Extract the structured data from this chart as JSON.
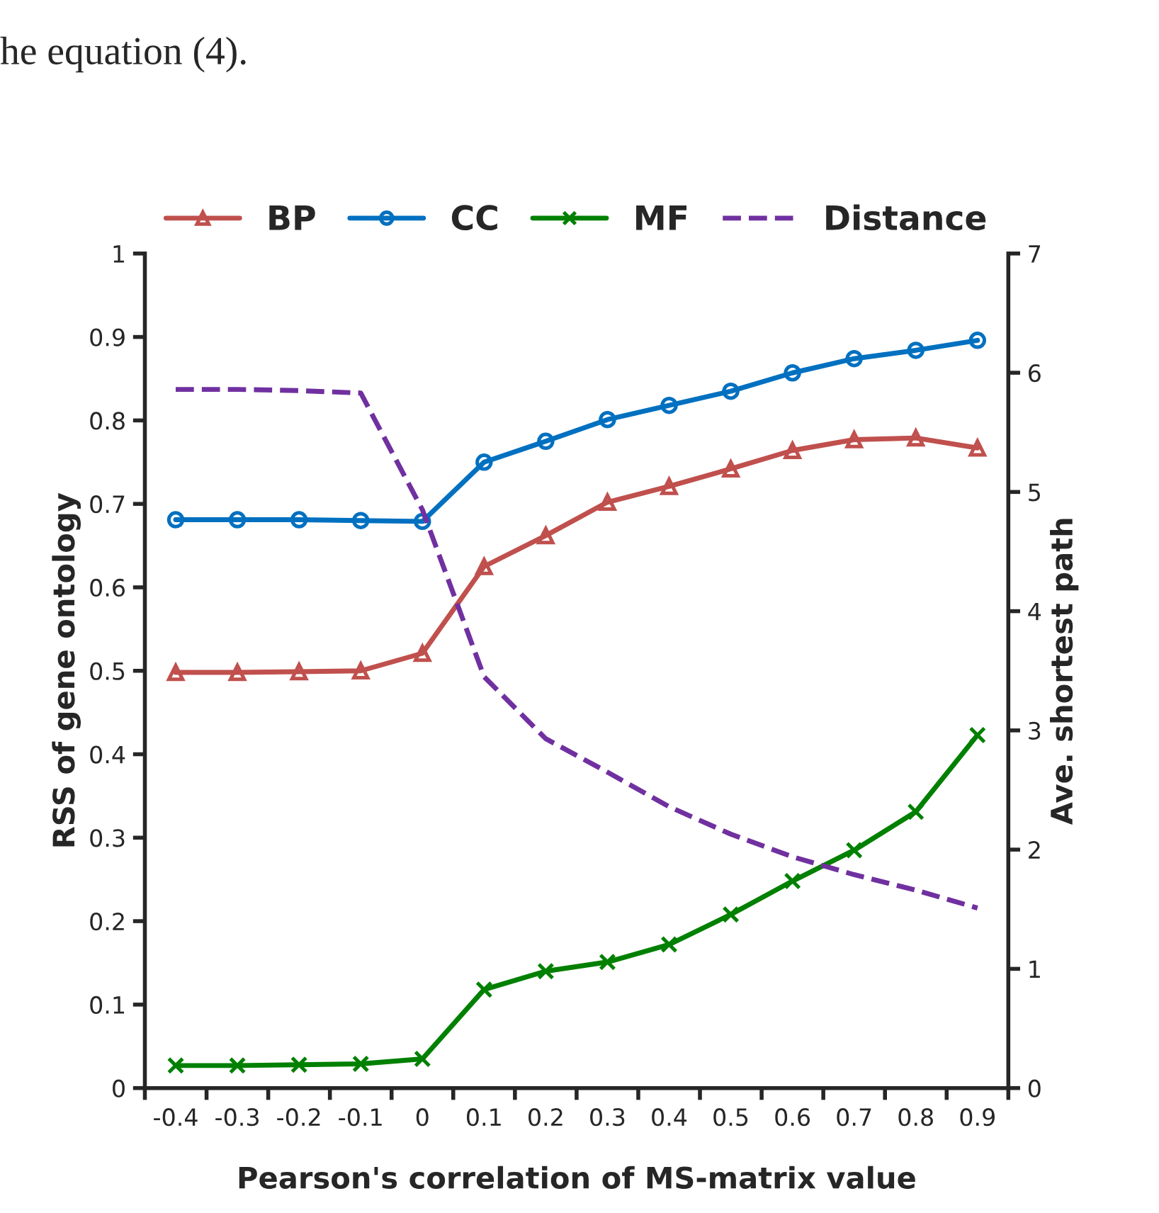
{
  "chart_data": {
    "type": "line",
    "xlabel": "Pearson's correlation of MS-matrix value",
    "ylabel": "RSS of gene ontology",
    "y2label": "Ave. shortest path",
    "categories": [
      "-0.4",
      "-0.3",
      "-0.2",
      "-0.1",
      "0",
      "0.1",
      "0.2",
      "0.3",
      "0.4",
      "0.5",
      "0.6",
      "0.7",
      "0.8",
      "0.9"
    ],
    "series": [
      {
        "name": "BP",
        "color": "#c0504d",
        "marker": "triangle",
        "line_style": "solid",
        "values": [
          0.498,
          0.498,
          0.499,
          0.5,
          0.521,
          0.625,
          0.662,
          0.702,
          0.721,
          0.742,
          0.764,
          0.777,
          0.779,
          0.767
        ]
      },
      {
        "name": "CC",
        "color": "#0070c0",
        "marker": "circle",
        "line_style": "solid",
        "values": [
          0.681,
          0.681,
          0.681,
          0.68,
          0.679,
          0.75,
          0.775,
          0.801,
          0.818,
          0.835,
          0.857,
          0.874,
          0.884,
          0.896
        ]
      },
      {
        "name": "MF",
        "color": "#008000",
        "marker": "cross",
        "line_style": "solid",
        "values": [
          0.027,
          0.027,
          0.028,
          0.029,
          0.035,
          0.118,
          0.14,
          0.151,
          0.172,
          0.208,
          0.248,
          0.285,
          0.331,
          0.423
        ]
      },
      {
        "name": "Distance",
        "color": "#7030a0",
        "marker": "none",
        "line_style": "dashed",
        "axis": "y2",
        "values": [
          5.86,
          5.86,
          5.85,
          5.83,
          4.85,
          3.45,
          2.93,
          2.65,
          2.36,
          2.13,
          1.94,
          1.79,
          1.66,
          1.51
        ]
      }
    ],
    "ylim": [
      0,
      1
    ],
    "yticks": [
      0,
      0.1,
      0.2,
      0.3,
      0.4,
      0.5,
      0.6,
      0.7,
      0.8,
      0.9,
      1
    ],
    "y2lim": [
      0,
      7
    ],
    "y2ticks": [
      0,
      1,
      2,
      3,
      4,
      5,
      6,
      7
    ],
    "grid": false,
    "legend": "top",
    "annotations": [
      "he equation (4)."
    ]
  }
}
